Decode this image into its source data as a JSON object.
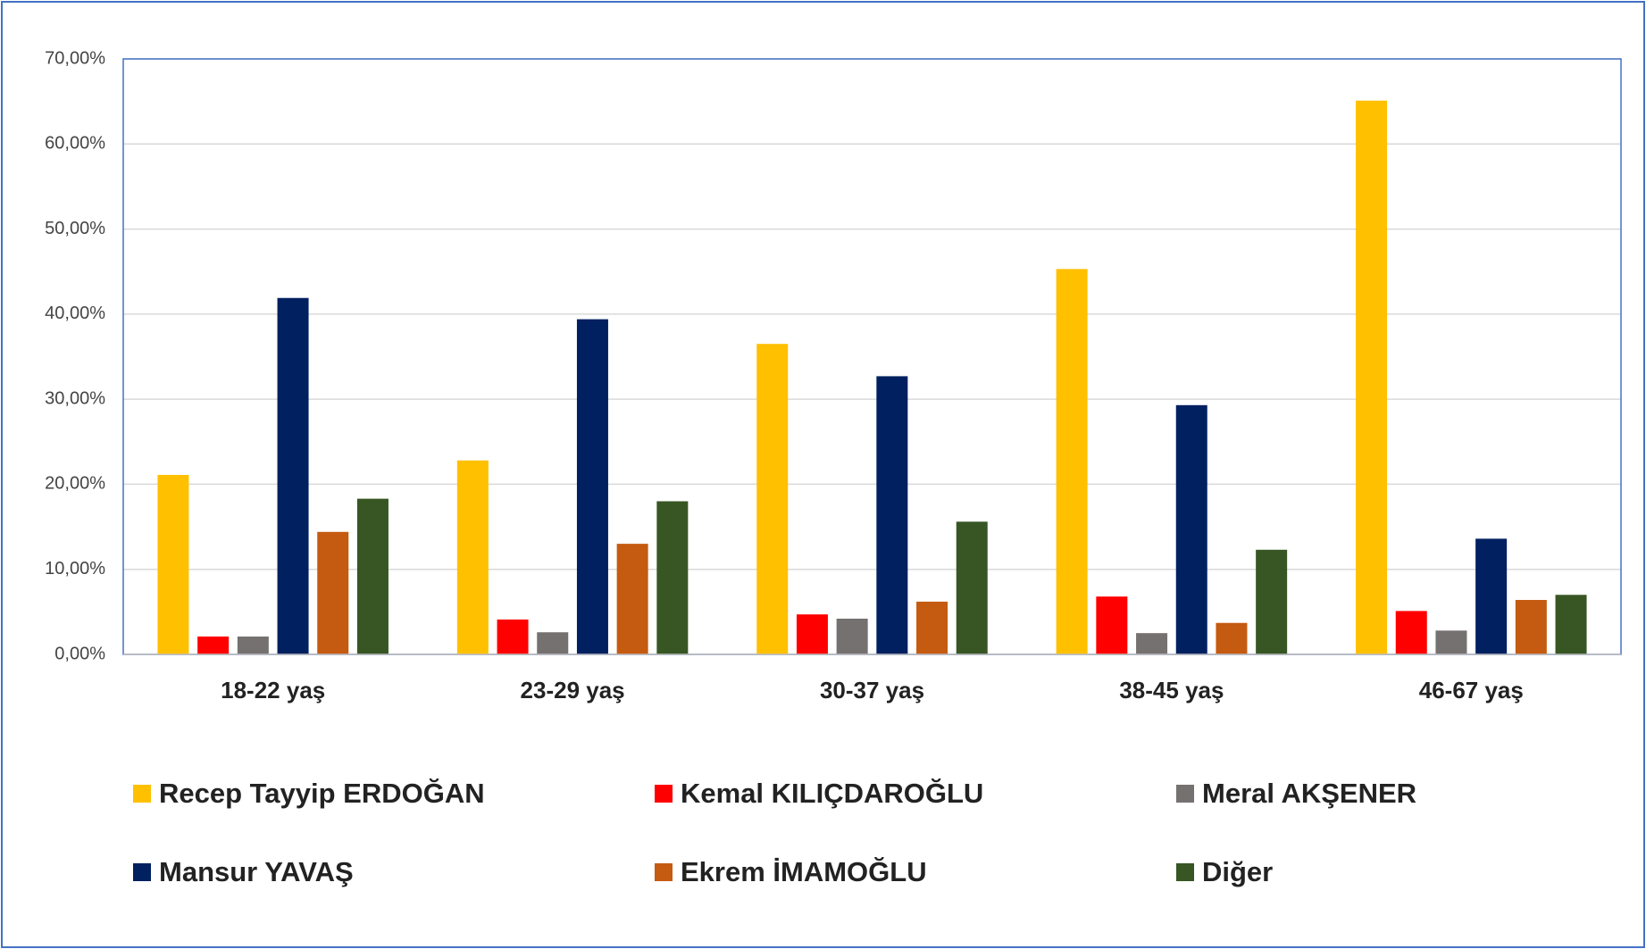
{
  "chart_data": {
    "type": "bar",
    "categories": [
      "18-22 yaş",
      "23-29 yaş",
      "30-37 yaş",
      "38-45 yaş",
      "46-67 yaş"
    ],
    "series": [
      {
        "name": "Recep Tayyip ERDOĞAN",
        "color": "#ffc000",
        "values": [
          21.1,
          22.8,
          36.5,
          45.3,
          65.1
        ]
      },
      {
        "name": "Kemal KILIÇDAROĞLU",
        "color": "#ff0000",
        "values": [
          2.1,
          4.1,
          4.7,
          6.8,
          5.1
        ]
      },
      {
        "name": "Meral AKŞENER",
        "color": "#767171",
        "values": [
          2.1,
          2.6,
          4.2,
          2.5,
          2.8
        ]
      },
      {
        "name": "Mansur YAVAŞ",
        "color": "#002060",
        "values": [
          41.9,
          39.4,
          32.7,
          29.3,
          13.6
        ]
      },
      {
        "name": "Ekrem İMAMOĞLU",
        "color": "#c55a11",
        "values": [
          14.4,
          13.0,
          6.2,
          3.7,
          6.4
        ]
      },
      {
        "name": "Diğer",
        "color": "#375623",
        "values": [
          18.3,
          18.0,
          15.6,
          12.3,
          7.0
        ]
      }
    ],
    "ylim": [
      0,
      70
    ],
    "yticks": [
      {
        "value": 0,
        "label": "0,00%"
      },
      {
        "value": 10,
        "label": "10,00%"
      },
      {
        "value": 20,
        "label": "20,00%"
      },
      {
        "value": 30,
        "label": "30,00%"
      },
      {
        "value": 40,
        "label": "40,00%"
      },
      {
        "value": 50,
        "label": "50,00%"
      },
      {
        "value": 60,
        "label": "60,00%"
      },
      {
        "value": 70,
        "label": "70,00%"
      }
    ],
    "grid": true
  }
}
